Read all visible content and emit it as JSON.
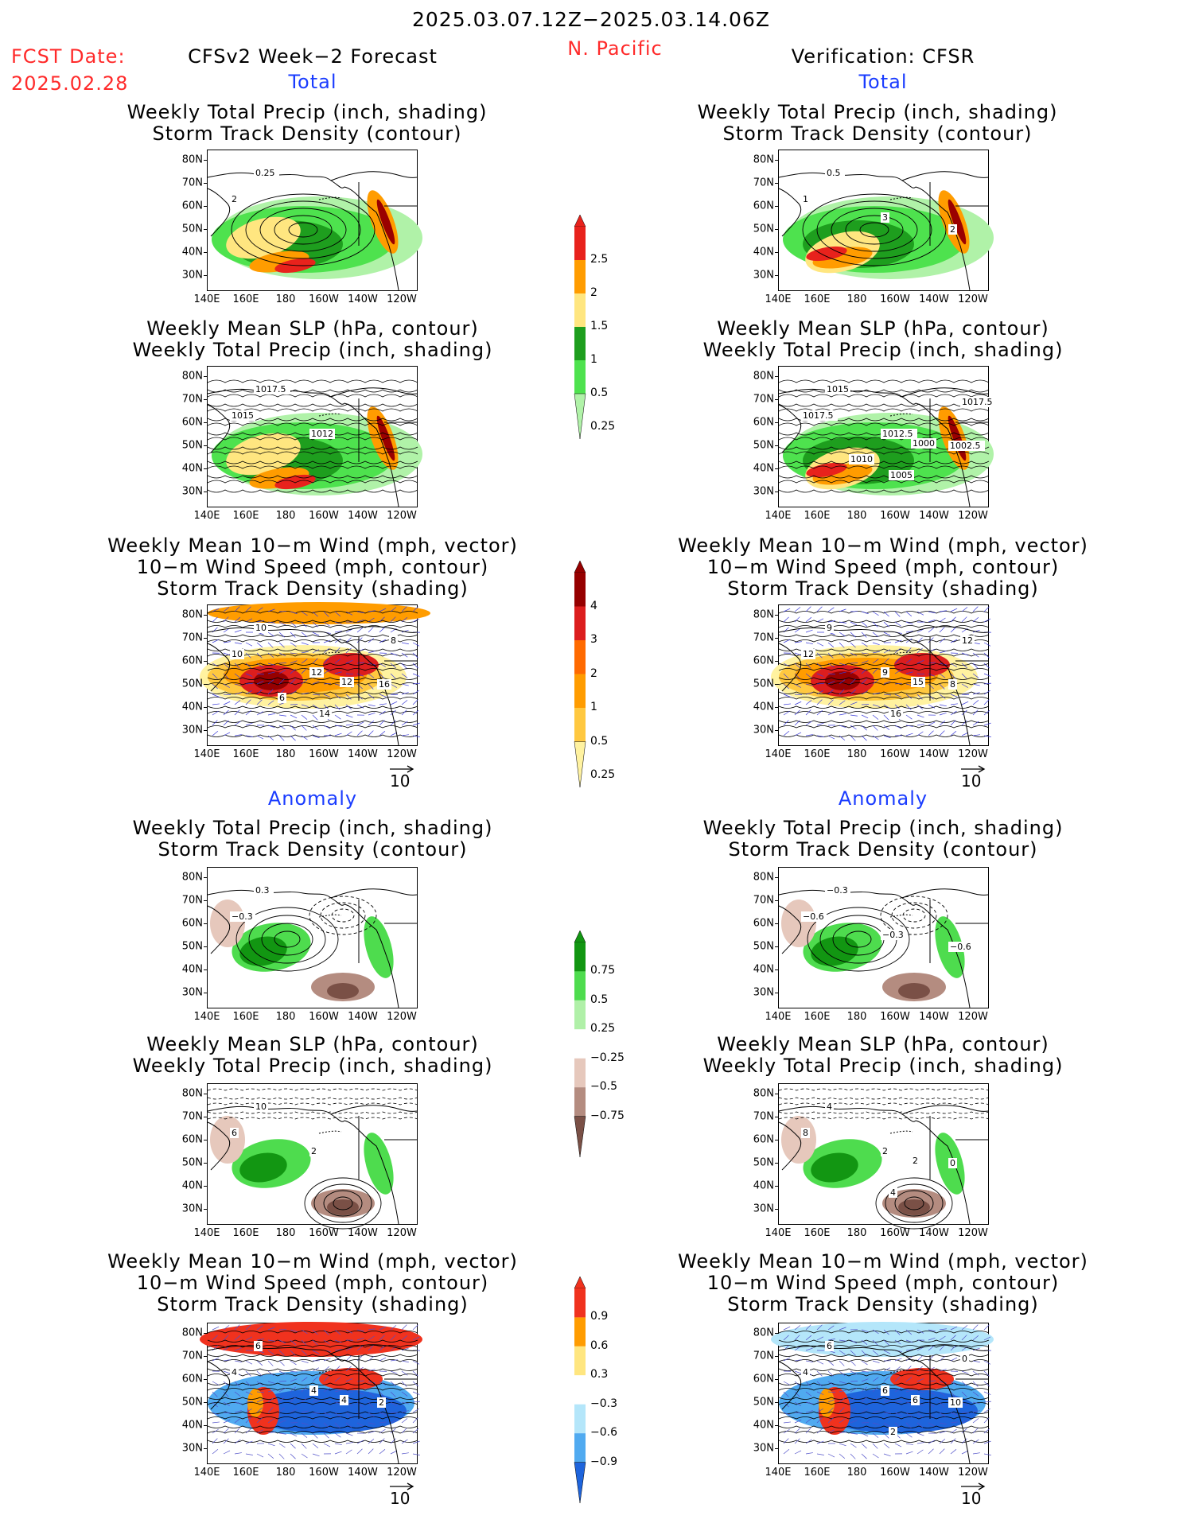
{
  "header": {
    "period": "2025.03.07.12Z−2025.03.14.06Z",
    "region": "N. Pacific",
    "fcst_label": "FCST Date:",
    "fcst_date": "2025.02.28",
    "left_title": "CFSv2 Week−2 Forecast",
    "right_title": "Verification: CFSR"
  },
  "sections": {
    "total": "Total",
    "anomaly": "Anomaly"
  },
  "panel_titles": {
    "precip_storm": [
      "Weekly Total Precip (inch, shading)",
      "Storm Track Density (contour)"
    ],
    "slp_precip": [
      "Weekly Mean SLP (hPa, contour)",
      "Weekly Total Precip (inch, shading)"
    ],
    "wind_storm": [
      "Weekly Mean 10−m Wind (mph, vector)",
      "10−m Wind Speed (mph, contour)",
      "Storm Track Density (shading)"
    ]
  },
  "axes": {
    "lat_labels": [
      "80N",
      "70N",
      "60N",
      "50N",
      "40N",
      "30N"
    ],
    "lon_labels": [
      "140E",
      "160E",
      "180",
      "160W",
      "140W",
      "120W"
    ]
  },
  "vector_ref": "10",
  "colorbars": {
    "precip_total": {
      "labels": [
        "2.5",
        "2",
        "1.5",
        "1",
        "0.5",
        "0.25"
      ],
      "colors": [
        "#e8221c",
        "#ff9c00",
        "#ffe680",
        "#1e9e1e",
        "#4ee24e",
        "#b0f2a8"
      ]
    },
    "storm_total": {
      "labels": [
        "4",
        "3",
        "2",
        "1",
        "0.5",
        "0.25"
      ],
      "colors": [
        "#960000",
        "#dc1e1e",
        "#ff6a00",
        "#ff9c00",
        "#ffc840",
        "#fff2a0"
      ]
    },
    "precip_anom": {
      "labels": [
        "0.75",
        "0.5",
        "0.25",
        "−0.25",
        "−0.5",
        "−0.75"
      ],
      "colors": [
        "#129612",
        "#4edc4e",
        "#b0f0a8",
        "#ffffff",
        "#e6c8bc",
        "#b48c80",
        "#7a5046"
      ]
    },
    "storm_anom": {
      "labels": [
        "0.9",
        "0.6",
        "0.3",
        "−0.3",
        "−0.6",
        "−0.9"
      ],
      "colors": [
        "#f0321e",
        "#ff9c00",
        "#ffe680",
        "#ffffff",
        "#b4e6fa",
        "#50aaf0",
        "#1e64dc"
      ]
    }
  },
  "panels": {
    "fc_total_precip": {
      "labels": [
        "0.25",
        "2"
      ]
    },
    "obs_total_precip": {
      "labels": [
        "0.5",
        "1",
        "3",
        "2"
      ]
    },
    "fc_total_slp": {
      "labels": [
        "1017.5",
        "1015",
        "1012"
      ]
    },
    "obs_total_slp": {
      "labels": [
        "1015",
        "1017.5",
        "1012.5",
        "1002.5",
        "1000",
        "1005",
        "1017.5",
        "1010"
      ]
    },
    "fc_total_wind": {
      "labels": [
        "10",
        "10",
        "12",
        "16",
        "12",
        "14",
        "8",
        "6"
      ]
    },
    "obs_total_wind": {
      "labels": [
        "9",
        "12",
        "9",
        "8",
        "15",
        "16",
        "12"
      ]
    },
    "fc_anom_precip": {
      "labels": [
        "0.3",
        "−0.3"
      ]
    },
    "obs_anom_precip": {
      "labels": [
        "−0.3",
        "−0.6",
        "−0.3",
        "−0.6"
      ]
    },
    "fc_anom_slp": {
      "labels": [
        "10",
        "6",
        "2"
      ]
    },
    "obs_anom_slp": {
      "labels": [
        "4",
        "8",
        "2",
        "0",
        "2",
        "4"
      ]
    },
    "fc_anom_wind": {
      "labels": [
        "6",
        "4",
        "4",
        "2",
        "4"
      ]
    },
    "obs_anom_wind": {
      "labels": [
        "6",
        "4",
        "6",
        "10",
        "6",
        "2",
        "0"
      ]
    }
  }
}
